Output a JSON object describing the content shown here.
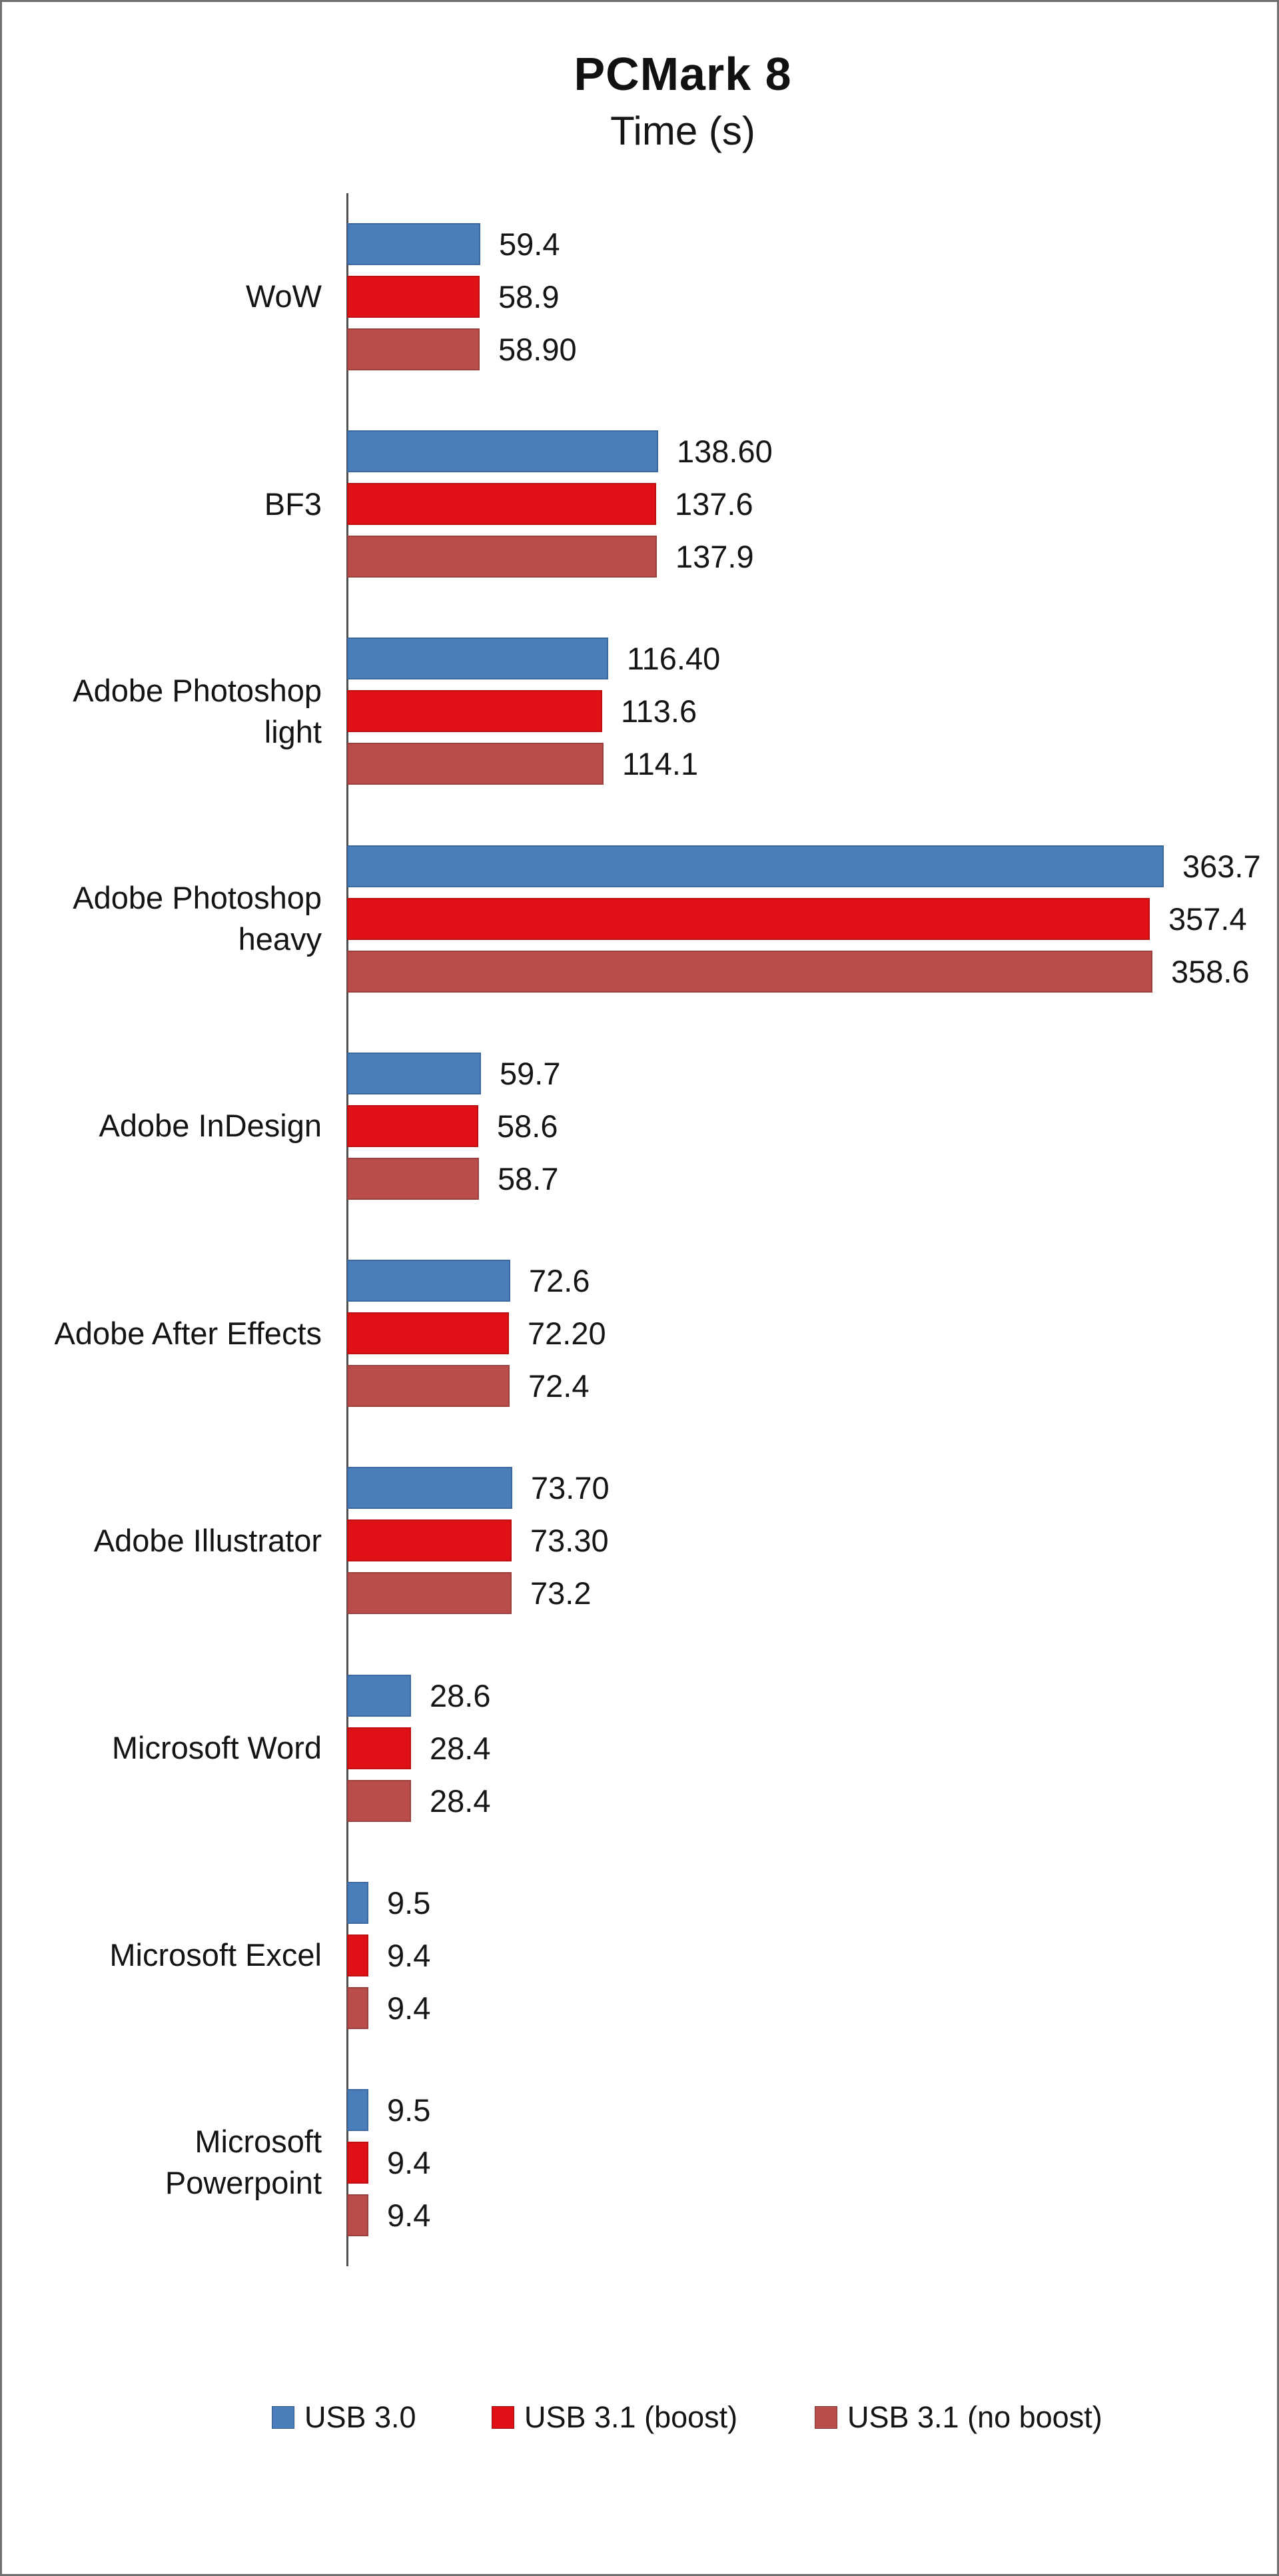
{
  "chart_data": {
    "type": "bar",
    "orientation": "horizontal",
    "title": "PCMark 8",
    "subtitle": "Time (s)",
    "categories": [
      "WoW",
      "BF3",
      "Adobe Photoshop\nlight",
      "Adobe Photoshop\nheavy",
      "Adobe InDesign",
      "Adobe After Effects",
      "Adobe Illustrator",
      "Microsoft Word",
      "Microsoft Excel",
      "Microsoft\nPowerpoint"
    ],
    "series": [
      {
        "name": "USB 3.0",
        "color": "#4a7ebb",
        "border_color": "#3b699f",
        "values": [
          59.4,
          138.6,
          116.4,
          363.7,
          59.7,
          72.6,
          73.7,
          28.6,
          9.5,
          9.5
        ],
        "labels": [
          "59.4",
          "138.60",
          "116.40",
          "363.7",
          "59.7",
          "72.6",
          "73.70",
          "28.6",
          "9.5",
          "9.5"
        ]
      },
      {
        "name": "USB 3.1 (boost)",
        "color": "#e01116",
        "border_color": "#bc0f12",
        "values": [
          58.9,
          137.6,
          113.6,
          357.4,
          58.6,
          72.2,
          73.3,
          28.4,
          9.4,
          9.4
        ],
        "labels": [
          "58.9",
          "137.6",
          "113.6",
          "357.4",
          "58.6",
          "72.20",
          "73.30",
          "28.4",
          "9.4",
          "9.4"
        ]
      },
      {
        "name": "USB 3.1 (no boost)",
        "color": "#b94d4a",
        "border_color": "#9d403d",
        "values": [
          58.9,
          137.9,
          114.1,
          358.6,
          58.7,
          72.4,
          73.2,
          28.4,
          9.4,
          9.4
        ],
        "labels": [
          "58.90",
          "137.9",
          "114.1",
          "358.6",
          "58.7",
          "72.4",
          "73.2",
          "28.4",
          "9.4",
          "9.4"
        ]
      }
    ],
    "xlim": [
      0,
      416
    ],
    "value_labels_shown": true,
    "grid": false,
    "legend_position": "bottom",
    "axis_color": "#4f4f4f"
  }
}
